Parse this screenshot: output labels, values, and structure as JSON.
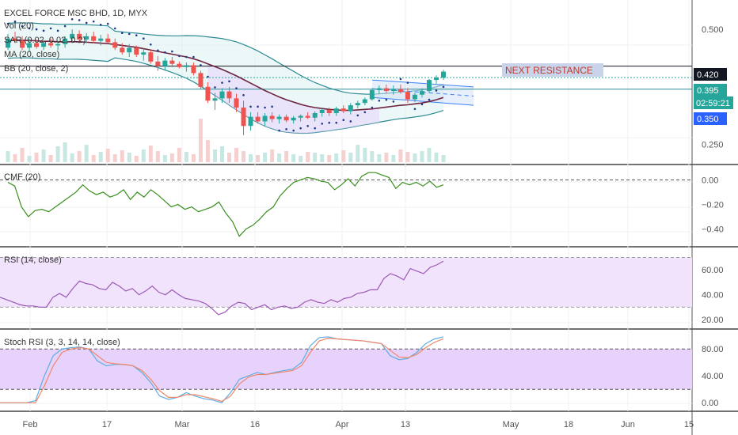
{
  "colors": {
    "up": "#26a69a",
    "down": "#ef5350",
    "bb": "#2d8a94",
    "ma": "#6d2540",
    "sar": "#1e3a8a",
    "cmf": "#3a8f1f",
    "rsi": "#9b59b6",
    "stoch_k": "#5dade2",
    "stoch_d": "#f0866a",
    "band_fill": "#e9d5ff",
    "resistance_label_bg": "#c9d3ea",
    "resistance_label_text": "#c0392b"
  },
  "main": {
    "title": "EXCEL FORCE MSC BHD, 1D, MYX",
    "indicators": [
      "Vol (20)",
      "SAR (0.02, 0.02, 0.2)",
      "MA (20, close)",
      "BB (20, close, 2)"
    ],
    "annotation": "NEXT RESISTANCE",
    "price_tags": [
      {
        "text": "0.420",
        "style": "dark"
      },
      {
        "text": "0.395",
        "style": "teal"
      },
      {
        "text": "02:59:21",
        "style": "teal"
      },
      {
        "text": "0.350",
        "style": "blue"
      }
    ]
  },
  "cmf_panel": {
    "label": "CMF (20)"
  },
  "rsi_panel": {
    "label": "RSI (14, close)"
  },
  "stoch_panel": {
    "label": "Stoch RSI (3, 3, 14, 14, close)"
  },
  "chart_data": [
    {
      "type": "candlestick",
      "title": "EXCEL FORCE MSC BHD, 1D, MYX",
      "x_ticks": [
        "Feb",
        "17",
        "Mar",
        "16",
        "Apr",
        "13",
        "May",
        "18",
        "Jun",
        "15"
      ],
      "y_ticks": [
        "0.500",
        "0.250"
      ],
      "ylim": [
        0.22,
        0.55
      ],
      "horizontal_levels": [
        0.42,
        0.395,
        0.37
      ],
      "annotation": "NEXT RESISTANCE",
      "ohlc": [
        [
          0.46,
          0.49,
          0.455,
          0.48
        ],
        [
          0.48,
          0.495,
          0.47,
          0.475
        ],
        [
          0.475,
          0.485,
          0.455,
          0.46
        ],
        [
          0.46,
          0.48,
          0.45,
          0.47
        ],
        [
          0.47,
          0.478,
          0.458,
          0.462
        ],
        [
          0.462,
          0.475,
          0.455,
          0.47
        ],
        [
          0.47,
          0.48,
          0.46,
          0.465
        ],
        [
          0.465,
          0.475,
          0.455,
          0.468
        ],
        [
          0.468,
          0.485,
          0.46,
          0.48
        ],
        [
          0.48,
          0.5,
          0.47,
          0.49
        ],
        [
          0.49,
          0.498,
          0.47,
          0.478
        ],
        [
          0.478,
          0.492,
          0.47,
          0.485
        ],
        [
          0.485,
          0.495,
          0.47,
          0.475
        ],
        [
          0.475,
          0.488,
          0.465,
          0.48
        ],
        [
          0.48,
          0.49,
          0.47,
          0.472
        ],
        [
          0.472,
          0.48,
          0.455,
          0.46
        ],
        [
          0.46,
          0.47,
          0.445,
          0.45
        ],
        [
          0.45,
          0.468,
          0.44,
          0.46
        ],
        [
          0.46,
          0.465,
          0.44,
          0.445
        ],
        [
          0.445,
          0.458,
          0.432,
          0.45
        ],
        [
          0.45,
          0.455,
          0.425,
          0.43
        ],
        [
          0.43,
          0.442,
          0.41,
          0.42
        ],
        [
          0.42,
          0.438,
          0.41,
          0.432
        ],
        [
          0.432,
          0.44,
          0.418,
          0.425
        ],
        [
          0.425,
          0.43,
          0.415,
          0.418
        ],
        [
          0.418,
          0.428,
          0.408,
          0.422
        ],
        [
          0.422,
          0.428,
          0.4,
          0.405
        ],
        [
          0.405,
          0.41,
          0.37,
          0.375
        ],
        [
          0.375,
          0.385,
          0.34,
          0.345
        ],
        [
          0.345,
          0.362,
          0.325,
          0.35
        ],
        [
          0.35,
          0.372,
          0.34,
          0.365
        ],
        [
          0.365,
          0.375,
          0.34,
          0.35
        ],
        [
          0.35,
          0.36,
          0.32,
          0.33
        ],
        [
          0.33,
          0.345,
          0.27,
          0.29
        ],
        [
          0.29,
          0.32,
          0.28,
          0.31
        ],
        [
          0.31,
          0.32,
          0.295,
          0.3
        ],
        [
          0.3,
          0.318,
          0.29,
          0.312
        ],
        [
          0.312,
          0.32,
          0.298,
          0.305
        ],
        [
          0.305,
          0.315,
          0.295,
          0.31
        ],
        [
          0.31,
          0.315,
          0.298,
          0.302
        ],
        [
          0.302,
          0.312,
          0.295,
          0.308
        ],
        [
          0.308,
          0.315,
          0.3,
          0.312
        ],
        [
          0.312,
          0.32,
          0.305,
          0.308
        ],
        [
          0.308,
          0.322,
          0.3,
          0.318
        ],
        [
          0.318,
          0.328,
          0.31,
          0.325
        ],
        [
          0.325,
          0.33,
          0.312,
          0.318
        ],
        [
          0.318,
          0.332,
          0.312,
          0.328
        ],
        [
          0.328,
          0.335,
          0.318,
          0.322
        ],
        [
          0.322,
          0.34,
          0.315,
          0.335
        ],
        [
          0.335,
          0.345,
          0.328,
          0.34
        ],
        [
          0.34,
          0.352,
          0.335,
          0.348
        ],
        [
          0.348,
          0.372,
          0.345,
          0.368
        ],
        [
          0.368,
          0.378,
          0.36,
          0.372
        ],
        [
          0.372,
          0.38,
          0.362,
          0.366
        ],
        [
          0.366,
          0.378,
          0.358,
          0.37
        ],
        [
          0.37,
          0.38,
          0.36,
          0.364
        ],
        [
          0.364,
          0.372,
          0.34,
          0.348
        ],
        [
          0.348,
          0.362,
          0.342,
          0.358
        ],
        [
          0.358,
          0.372,
          0.352,
          0.366
        ],
        [
          0.366,
          0.392,
          0.362,
          0.39
        ],
        [
          0.39,
          0.4,
          0.382,
          0.395
        ],
        [
          0.395,
          0.412,
          0.39,
          0.408
        ]
      ],
      "ma20": [
        0.475,
        0.476,
        0.476,
        0.476,
        0.475,
        0.474,
        0.474,
        0.473,
        0.473,
        0.473,
        0.473,
        0.472,
        0.471,
        0.47,
        0.469,
        0.467,
        0.465,
        0.463,
        0.461,
        0.458,
        0.455,
        0.452,
        0.449,
        0.446,
        0.443,
        0.44,
        0.436,
        0.431,
        0.425,
        0.419,
        0.413,
        0.406,
        0.399,
        0.391,
        0.383,
        0.375,
        0.367,
        0.36,
        0.353,
        0.347,
        0.342,
        0.337,
        0.333,
        0.33,
        0.328,
        0.326,
        0.325,
        0.324,
        0.324,
        0.325,
        0.326,
        0.327,
        0.329,
        0.331,
        0.333,
        0.335,
        0.336,
        0.338,
        0.34,
        0.343,
        0.347,
        0.352
      ],
      "channel": {
        "upper": [
          [
            0.33,
            0.39
          ],
          [
            0.37,
            0.375
          ]
        ],
        "lower": [
          [
            0.33,
            0.352
          ],
          [
            0.37,
            0.335
          ]
        ]
      }
    },
    {
      "type": "line",
      "title": "CMF (20)",
      "y_ticks": [
        "0.00",
        "−0.20",
        "−0.40"
      ],
      "ylim": [
        -0.52,
        0.1
      ],
      "reference_lines": [
        0.0
      ],
      "values": [
        -0.02,
        -0.05,
        -0.22,
        -0.3,
        -0.25,
        -0.24,
        -0.26,
        -0.22,
        -0.18,
        -0.14,
        -0.1,
        -0.04,
        -0.09,
        -0.12,
        -0.1,
        -0.14,
        -0.12,
        -0.08,
        -0.16,
        -0.1,
        -0.14,
        -0.08,
        -0.12,
        -0.17,
        -0.22,
        -0.2,
        -0.24,
        -0.22,
        -0.26,
        -0.24,
        -0.22,
        -0.18,
        -0.27,
        -0.34,
        -0.46,
        -0.4,
        -0.37,
        -0.32,
        -0.26,
        -0.22,
        -0.13,
        -0.07,
        -0.02,
        0.0,
        0.02,
        0.01,
        -0.01,
        -0.02,
        -0.08,
        -0.04,
        0.01,
        -0.05,
        0.03,
        0.06,
        0.06,
        0.04,
        0.02,
        -0.07,
        -0.02,
        -0.04,
        -0.02,
        -0.05,
        -0.01,
        -0.06,
        -0.04
      ]
    },
    {
      "type": "line",
      "title": "RSI (14, close)",
      "y_ticks": [
        "60.00",
        "40.00",
        "20.00"
      ],
      "ylim": [
        15,
        76
      ],
      "band": [
        30,
        70
      ],
      "values": [
        38,
        36,
        34,
        32,
        31,
        31,
        30,
        30,
        38,
        41,
        38,
        45,
        51,
        49,
        48,
        45,
        44,
        50,
        47,
        43,
        45,
        40,
        43,
        47,
        42,
        40,
        44,
        40,
        37,
        36,
        35,
        33,
        29,
        24,
        26,
        31,
        34,
        33,
        28,
        30,
        32,
        28,
        30,
        31,
        29,
        30,
        34,
        36,
        34,
        33,
        36,
        34,
        37,
        38,
        41,
        42,
        44,
        44,
        53,
        57,
        55,
        52,
        61,
        59,
        57,
        62,
        64,
        67
      ]
    },
    {
      "type": "line",
      "title": "Stoch RSI (3, 3, 14, 14, close)",
      "y_ticks": [
        "80.00",
        "40.00",
        "0.00"
      ],
      "ylim": [
        -8,
        105
      ],
      "band": [
        20,
        80
      ],
      "series": [
        {
          "values": [
            0,
            0,
            0,
            0,
            3,
            40,
            70,
            80,
            82,
            83,
            80,
            62,
            55,
            57,
            57,
            55,
            45,
            30,
            10,
            5,
            8,
            15,
            10,
            6,
            4,
            0,
            15,
            35,
            40,
            45,
            42,
            45,
            48,
            50,
            60,
            85,
            97,
            98,
            95,
            94,
            93,
            92,
            90,
            88,
            70,
            64,
            66,
            75,
            88,
            95,
            98
          ]
        },
        {
          "values": [
            0,
            0,
            0,
            0,
            0,
            25,
            55,
            75,
            80,
            82,
            80,
            70,
            60,
            58,
            57,
            55,
            48,
            35,
            18,
            8,
            8,
            12,
            12,
            9,
            6,
            2,
            10,
            28,
            38,
            42,
            42,
            44,
            46,
            48,
            55,
            75,
            92,
            96,
            95,
            94,
            93,
            92,
            90,
            88,
            78,
            68,
            67,
            72,
            82,
            90,
            95
          ]
        }
      ]
    }
  ]
}
